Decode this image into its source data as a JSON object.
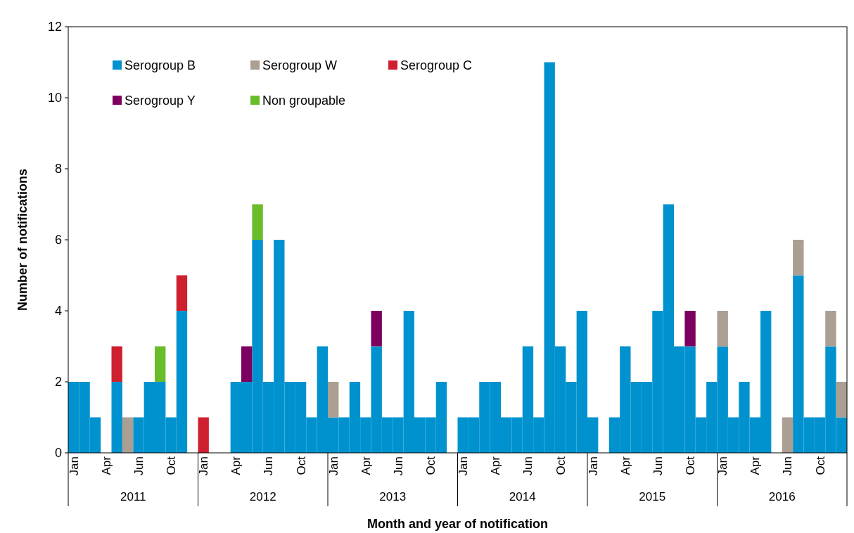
{
  "chart_data": {
    "type": "bar",
    "stacked": true,
    "xlabel": "Month and year of notification",
    "ylabel": "Number of notifications",
    "categories": [
      "Jan",
      null,
      null,
      "Apr",
      null,
      null,
      "Jun",
      null,
      null,
      "Oct",
      null,
      null,
      "Jan",
      null,
      null,
      "Apr",
      null,
      null,
      "Jun",
      null,
      null,
      "Oct",
      null,
      null,
      "Jan",
      null,
      null,
      "Apr",
      null,
      null,
      "Jun",
      null,
      null,
      "Oct",
      null,
      null,
      "Jan",
      null,
      null,
      "Apr",
      null,
      null,
      "Jun",
      null,
      null,
      "Oct",
      null,
      null,
      "Jan",
      null,
      null,
      "Apr",
      null,
      null,
      "Jun",
      null,
      null,
      "Oct",
      null,
      null,
      "Jan",
      null,
      null,
      "Apr",
      null,
      null,
      "Jun",
      null,
      null,
      "Oct",
      null,
      null
    ],
    "annotations": [
      "2011",
      "2012",
      "2013",
      "2014",
      "2015",
      "2016"
    ],
    "series": [
      {
        "name": "Serogroup B",
        "color": "#0092cf",
        "values": [
          2,
          2,
          1,
          0,
          2,
          0,
          1,
          2,
          2,
          1,
          4,
          0,
          0,
          0,
          0,
          2,
          2,
          6,
          2,
          6,
          2,
          2,
          1,
          3,
          1,
          1,
          2,
          1,
          3,
          1,
          1,
          4,
          1,
          1,
          2,
          0,
          1,
          1,
          2,
          2,
          1,
          1,
          3,
          1,
          11,
          3,
          2,
          4,
          1,
          0,
          1,
          3,
          2,
          2,
          4,
          7,
          3,
          3,
          1,
          2,
          3,
          1,
          2,
          1,
          4,
          0,
          0,
          5,
          1,
          1,
          3,
          1
        ]
      },
      {
        "name": "Serogroup W",
        "color": "#ab9e93",
        "values": [
          0,
          0,
          0,
          0,
          0,
          1,
          0,
          0,
          0,
          0,
          0,
          0,
          0,
          0,
          0,
          0,
          0,
          0,
          0,
          0,
          0,
          0,
          0,
          0,
          1,
          0,
          0,
          0,
          0,
          0,
          0,
          0,
          0,
          0,
          0,
          0,
          0,
          0,
          0,
          0,
          0,
          0,
          0,
          0,
          0,
          0,
          0,
          0,
          0,
          0,
          0,
          0,
          0,
          0,
          0,
          0,
          0,
          0,
          0,
          0,
          1,
          0,
          0,
          0,
          0,
          0,
          1,
          1,
          0,
          0,
          1,
          1
        ]
      },
      {
        "name": "Serogroup C",
        "color": "#cf2030",
        "values": [
          0,
          0,
          0,
          0,
          1,
          0,
          0,
          0,
          0,
          0,
          1,
          0,
          1,
          0,
          0,
          0,
          0,
          0,
          0,
          0,
          0,
          0,
          0,
          0,
          0,
          0,
          0,
          0,
          0,
          0,
          0,
          0,
          0,
          0,
          0,
          0,
          0,
          0,
          0,
          0,
          0,
          0,
          0,
          0,
          0,
          0,
          0,
          0,
          0,
          0,
          0,
          0,
          0,
          0,
          0,
          0,
          0,
          0,
          0,
          0,
          0,
          0,
          0,
          0,
          0,
          0,
          0,
          0,
          0,
          0,
          0,
          0
        ]
      },
      {
        "name": "Serogroup Y",
        "color": "#7c005f",
        "values": [
          0,
          0,
          0,
          0,
          0,
          0,
          0,
          0,
          0,
          0,
          0,
          0,
          0,
          0,
          0,
          0,
          1,
          0,
          0,
          0,
          0,
          0,
          0,
          0,
          0,
          0,
          0,
          0,
          1,
          0,
          0,
          0,
          0,
          0,
          0,
          0,
          0,
          0,
          0,
          0,
          0,
          0,
          0,
          0,
          0,
          0,
          0,
          0,
          0,
          0,
          0,
          0,
          0,
          0,
          0,
          0,
          0,
          1,
          0,
          0,
          0,
          0,
          0,
          0,
          0,
          0,
          0,
          0,
          0,
          0,
          0,
          0
        ]
      },
      {
        "name": "Non groupable",
        "color": "#6abd2a",
        "values": [
          0,
          0,
          0,
          0,
          0,
          0,
          0,
          0,
          1,
          0,
          0,
          0,
          0,
          0,
          0,
          0,
          0,
          1,
          0,
          0,
          0,
          0,
          0,
          0,
          0,
          0,
          0,
          0,
          0,
          0,
          0,
          0,
          0,
          0,
          0,
          0,
          0,
          0,
          0,
          0,
          0,
          0,
          0,
          0,
          0,
          0,
          0,
          0,
          0,
          0,
          0,
          0,
          0,
          0,
          0,
          0,
          0,
          0,
          0,
          0,
          0,
          0,
          0,
          0,
          0,
          0,
          0,
          0,
          0,
          0,
          0,
          0
        ]
      }
    ],
    "ylim": [
      0,
      12
    ],
    "yticks": [
      0,
      2,
      4,
      6,
      8,
      10,
      12
    ],
    "legend": "top left",
    "grid": false
  }
}
